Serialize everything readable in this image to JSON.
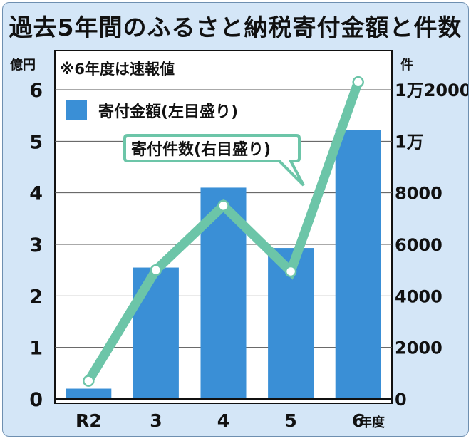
{
  "title": "過去5年間のふるさと納税寄付金額と件数",
  "note": "※6年度は速報値",
  "chart_data": {
    "type": "bar+line",
    "categories": [
      "R2",
      "3",
      "4",
      "5",
      "6"
    ],
    "x_unit": "年度",
    "left_axis": {
      "unit": "億円",
      "ticks": [
        0,
        1,
        2,
        3,
        4,
        5,
        6
      ],
      "ylim": [
        0,
        6
      ]
    },
    "right_axis": {
      "unit": "件",
      "tick_labels": [
        "0",
        "2000",
        "4000",
        "6000",
        "8000",
        "1万",
        "1万2000"
      ],
      "ylim": [
        0,
        12000
      ]
    },
    "grid": true,
    "series": [
      {
        "name": "寄付金額(左目盛り)",
        "type": "bar",
        "axis": "left",
        "color": "#3a8fd6",
        "values": [
          0.2,
          2.55,
          4.1,
          2.93,
          5.22
        ]
      },
      {
        "name": "寄付件数(右目盛り)",
        "type": "line",
        "axis": "right",
        "color": "#6cc5a8",
        "values": [
          700,
          5000,
          7500,
          4950,
          12300
        ]
      }
    ]
  }
}
